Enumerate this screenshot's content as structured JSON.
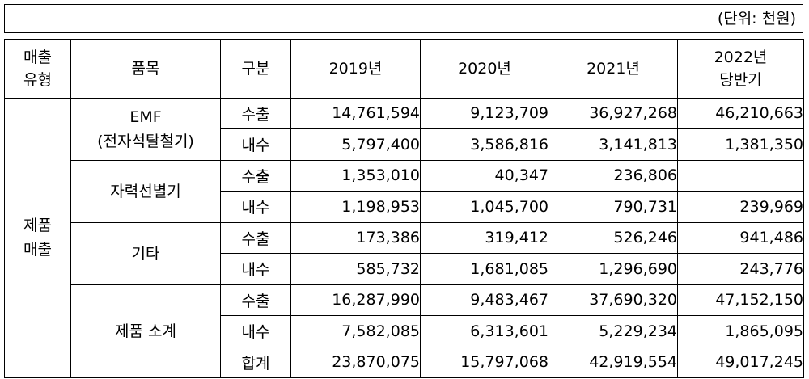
{
  "unit": "(단위: 천원)",
  "header": {
    "sales_type": [
      "매출",
      "유형"
    ],
    "item": "품목",
    "division": "구분",
    "years": [
      {
        "lines": [
          "2019년"
        ]
      },
      {
        "lines": [
          "2020년"
        ]
      },
      {
        "lines": [
          "2021년"
        ]
      },
      {
        "lines": [
          "2022년",
          "당반기"
        ]
      }
    ]
  },
  "sales_type_label": [
    "제품",
    "매출"
  ],
  "groups": [
    {
      "item": [
        "EMF",
        "(전자석탈철기)"
      ],
      "rows": [
        {
          "division": "수출",
          "values": [
            "14,761,594",
            "9,123,709",
            "36,927,268",
            "46,210,663"
          ]
        },
        {
          "division": "내수",
          "values": [
            "5,797,400",
            "3,586,816",
            "3,141,813",
            "1,381,350"
          ]
        }
      ]
    },
    {
      "item": [
        "자력선별기"
      ],
      "rows": [
        {
          "division": "수출",
          "values": [
            "1,353,010",
            "40,347",
            "236,806",
            ""
          ]
        },
        {
          "division": "내수",
          "values": [
            "1,198,953",
            "1,045,700",
            "790,731",
            "239,969"
          ]
        }
      ]
    },
    {
      "item": [
        "기타"
      ],
      "rows": [
        {
          "division": "수출",
          "values": [
            "173,386",
            "319,412",
            "526,246",
            "941,486"
          ]
        },
        {
          "division": "내수",
          "values": [
            "585,732",
            "1,681,085",
            "1,296,690",
            "243,776"
          ]
        }
      ]
    },
    {
      "item": [
        "제품 소계"
      ],
      "rows": [
        {
          "division": "수출",
          "values": [
            "16,287,990",
            "9,483,467",
            "37,690,320",
            "47,152,150"
          ]
        },
        {
          "division": "내수",
          "values": [
            "7,582,085",
            "6,313,601",
            "5,229,234",
            "1,865,095"
          ]
        },
        {
          "division": "합계",
          "values": [
            "23,870,075",
            "15,797,068",
            "42,919,554",
            "49,017,245"
          ]
        }
      ]
    }
  ]
}
